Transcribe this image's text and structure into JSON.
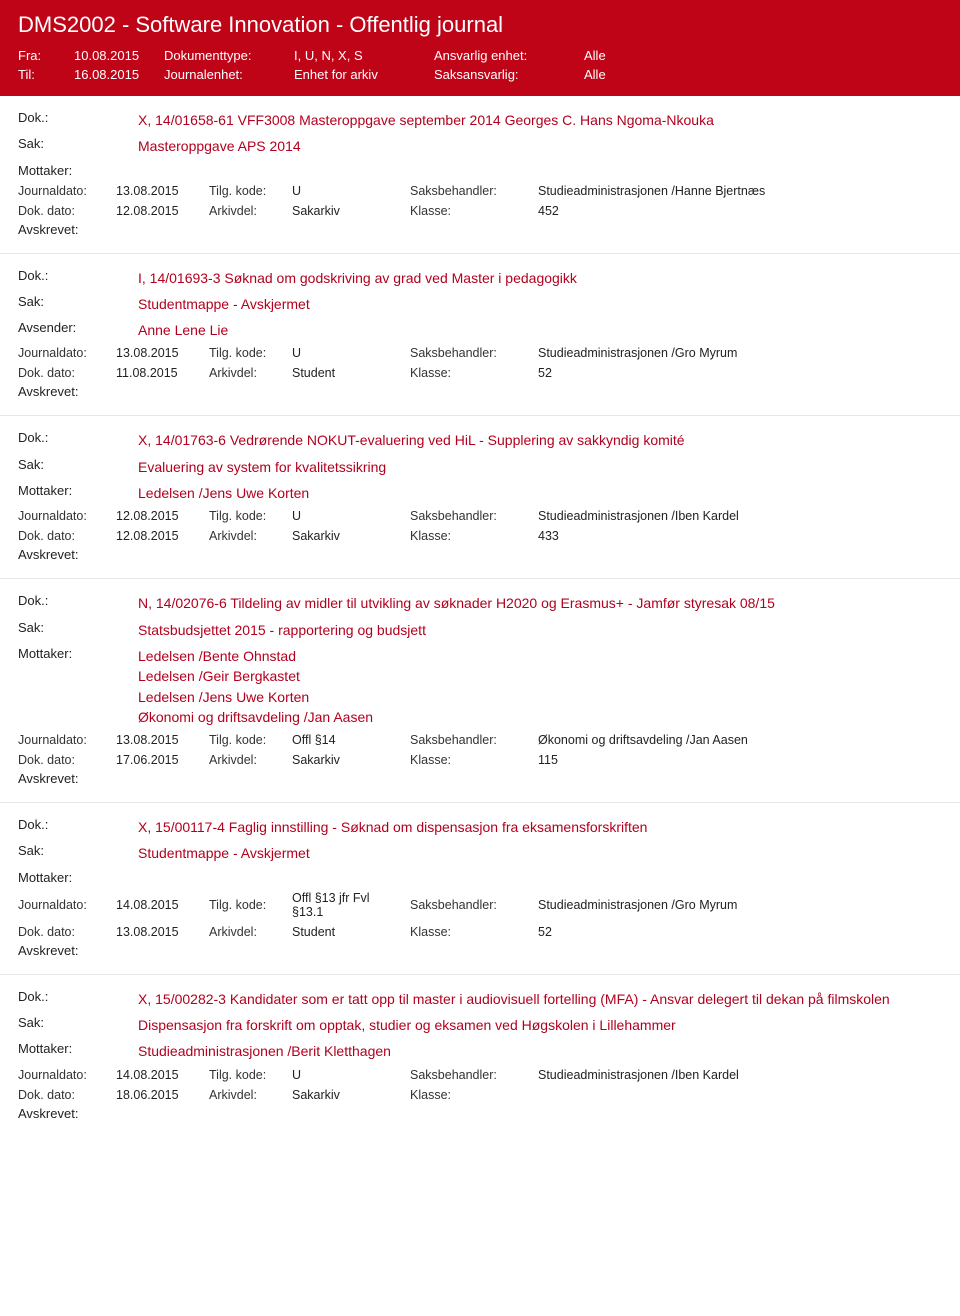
{
  "header": {
    "title": "DMS2002 - Software Innovation - Offentlig journal",
    "fra_label": "Fra:",
    "fra_value": "10.08.2015",
    "til_label": "Til:",
    "til_value": "16.08.2015",
    "dokumenttype_label": "Dokumenttype:",
    "dokumenttype_value": "I, U, N, X, S",
    "journalenhet_label": "Journalenhet:",
    "journalenhet_value": "Enhet for arkiv",
    "ansvarlig_label": "Ansvarlig enhet:",
    "ansvarlig_value": "Alle",
    "saksansvarlig_label": "Saksansvarlig:",
    "saksansvarlig_value": "Alle"
  },
  "labels": {
    "dok": "Dok.:",
    "sak": "Sak:",
    "mottaker": "Mottaker:",
    "avsender": "Avsender:",
    "journaldato": "Journaldato:",
    "dokdato": "Dok. dato:",
    "tilgkode": "Tilg. kode:",
    "arkivdel": "Arkivdel:",
    "saksbehandler": "Saksbehandler:",
    "klasse": "Klasse:",
    "avskrevet": "Avskrevet:"
  },
  "entries": [
    {
      "dok": "X, 14/01658-61 VFF3008 Masteroppgave september 2014 Georges C. Hans Ngoma-Nkouka",
      "sak": "Masteroppgave APS 2014",
      "party_label": "Mottaker:",
      "party_values": [],
      "journaldato": "13.08.2015",
      "tilgkode": "U",
      "saksbehandler": "Studieadministrasjonen /Hanne Bjertnæs",
      "dokdato": "12.08.2015",
      "arkivdel": "Sakarkiv",
      "klasse": "452"
    },
    {
      "dok": "I, 14/01693-3 Søknad om godskriving av grad ved Master i pedagogikk",
      "sak": "Studentmappe - Avskjermet",
      "party_label": "Avsender:",
      "party_values": [
        "Anne Lene Lie"
      ],
      "journaldato": "13.08.2015",
      "tilgkode": "U",
      "saksbehandler": "Studieadministrasjonen /Gro Myrum",
      "dokdato": "11.08.2015",
      "arkivdel": "Student",
      "klasse": "52"
    },
    {
      "dok": "X, 14/01763-6 Vedrørende NOKUT-evaluering ved HiL - Supplering av sakkyndig komité",
      "sak": "Evaluering av system for kvalitetssikring",
      "party_label": "Mottaker:",
      "party_values": [
        "Ledelsen /Jens Uwe Korten"
      ],
      "journaldato": "12.08.2015",
      "tilgkode": "U",
      "saksbehandler": "Studieadministrasjonen /Iben Kardel",
      "dokdato": "12.08.2015",
      "arkivdel": "Sakarkiv",
      "klasse": "433"
    },
    {
      "dok": "N, 14/02076-6 Tildeling av midler til utvikling av søknader H2020 og Erasmus+ - Jamfør styresak 08/15",
      "sak": "Statsbudsjettet 2015 - rapportering og budsjett",
      "party_label": "Mottaker:",
      "party_values": [
        "Ledelsen /Bente Ohnstad",
        "Ledelsen /Geir Bergkastet",
        "Ledelsen /Jens Uwe Korten",
        "Økonomi og driftsavdeling /Jan Aasen"
      ],
      "journaldato": "13.08.2015",
      "tilgkode": "Offl §14",
      "saksbehandler": "Økonomi og driftsavdeling /Jan Aasen",
      "dokdato": "17.06.2015",
      "arkivdel": "Sakarkiv",
      "klasse": "115"
    },
    {
      "dok": "X, 15/00117-4 Faglig innstilling - Søknad om dispensasjon fra eksamensforskriften",
      "sak": "Studentmappe - Avskjermet",
      "party_label": "Mottaker:",
      "party_values": [],
      "journaldato": "14.08.2015",
      "tilgkode": "Offl §13 jfr Fvl §13.1",
      "saksbehandler": "Studieadministrasjonen /Gro Myrum",
      "dokdato": "13.08.2015",
      "arkivdel": "Student",
      "klasse": "52"
    },
    {
      "dok": "X, 15/00282-3 Kandidater som er tatt opp til master i audiovisuell fortelling (MFA) - Ansvar delegert til dekan på filmskolen",
      "sak": "Dispensasjon fra forskrift om opptak, studier og eksamen ved Høgskolen i Lillehammer",
      "party_label": "Mottaker:",
      "party_values": [
        "Studieadministrasjonen /Berit Kletthagen"
      ],
      "journaldato": "14.08.2015",
      "tilgkode": "U",
      "saksbehandler": "Studieadministrasjonen /Iben Kardel",
      "dokdato": "18.06.2015",
      "arkivdel": "Sakarkiv",
      "klasse": ""
    }
  ]
}
